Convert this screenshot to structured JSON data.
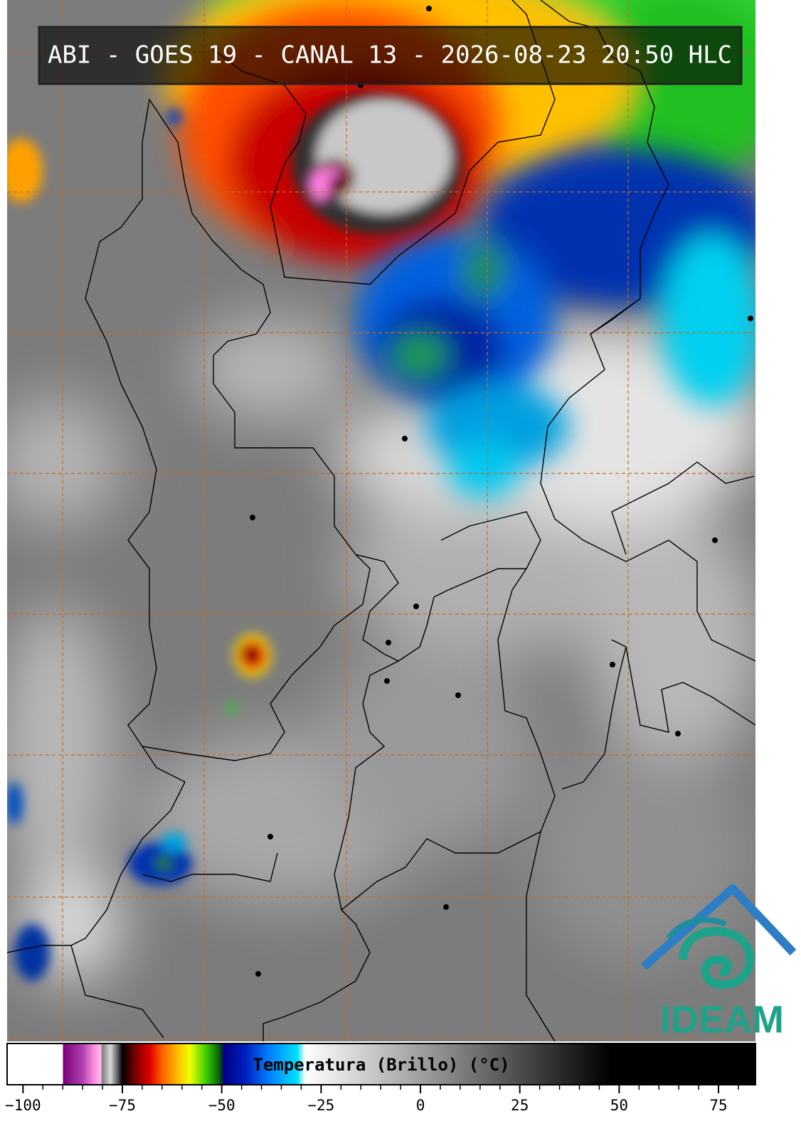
{
  "title": "ABI - GOES 19 - CANAL 13 - 2026-08-23 20:50 HLC",
  "logo": "IDEAM",
  "colorbar": {
    "label": "Temperatura (Brillo) (°C)",
    "xlim": [
      -104,
      84.3
    ],
    "xticks": [
      {
        "value": -100,
        "label": "−100"
      },
      {
        "value": -75,
        "label": "−75"
      },
      {
        "value": -50,
        "label": "−50"
      },
      {
        "value": -25,
        "label": "−25"
      },
      0,
      25,
      50,
      75
    ],
    "minor_xticks": [
      -95,
      -90,
      -85,
      -80,
      -70,
      -65,
      -60,
      -55,
      -45,
      -40,
      -35,
      -30,
      -20,
      -15,
      -10,
      -5,
      5,
      10,
      15,
      20,
      30,
      35,
      40,
      45,
      55,
      60,
      65,
      70,
      80
    ],
    "stops": [
      {
        "value": -104,
        "color": "#ffffff"
      },
      {
        "value": -90,
        "color": "#ffffff"
      },
      {
        "value": -89.9,
        "color": "#7a007a"
      },
      {
        "value": -85,
        "color": "#b040b0"
      },
      {
        "value": -82,
        "color": "#ff90e0"
      },
      {
        "value": -80.5,
        "color": "#ffb8ea"
      },
      {
        "value": -80,
        "color": "#808080"
      },
      {
        "value": -78,
        "color": "#d8d8d8"
      },
      {
        "value": -76,
        "color": "#505050"
      },
      {
        "value": -75,
        "color": "#000000"
      },
      {
        "value": -72,
        "color": "#700000"
      },
      {
        "value": -68,
        "color": "#e00000"
      },
      {
        "value": -65,
        "color": "#ff6000"
      },
      {
        "value": -61,
        "color": "#ffc000"
      },
      {
        "value": -58,
        "color": "#f0ff00"
      },
      {
        "value": -54,
        "color": "#40d000"
      },
      {
        "value": -50.5,
        "color": "#006000"
      },
      {
        "value": -49.5,
        "color": "#000080"
      },
      {
        "value": -44,
        "color": "#0020c0"
      },
      {
        "value": -38,
        "color": "#0080ff"
      },
      {
        "value": -31,
        "color": "#00e0ff"
      },
      {
        "value": -29,
        "color": "#ffffff"
      },
      {
        "value": 48,
        "color": "#000000"
      },
      {
        "value": 84.3,
        "color": "#000000"
      }
    ]
  }
}
